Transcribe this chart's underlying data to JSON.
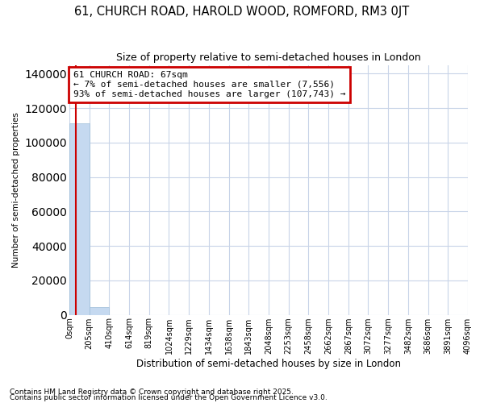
{
  "title": "61, CHURCH ROAD, HAROLD WOOD, ROMFORD, RM3 0JT",
  "subtitle": "Size of property relative to semi-detached houses in London",
  "xlabel": "Distribution of semi-detached houses by size in London",
  "ylabel": "Number of semi-detached properties",
  "property_size": 67,
  "property_label": "61 CHURCH ROAD: 67sqm",
  "smaller_pct": 7,
  "smaller_count": 7556,
  "larger_pct": 93,
  "larger_count": 107743,
  "bar_color": "#c5d9f0",
  "bar_edge_color": "#9dbdd8",
  "line_color": "#cc0000",
  "annotation_box_color": "#cc0000",
  "background_color": "#ffffff",
  "grid_color": "#c8d4e8",
  "xlim": [
    0,
    4096
  ],
  "ylim": [
    0,
    145000
  ],
  "yticks": [
    0,
    20000,
    40000,
    60000,
    80000,
    100000,
    120000,
    140000
  ],
  "xtick_labels": [
    "0sqm",
    "205sqm",
    "410sqm",
    "614sqm",
    "819sqm",
    "1024sqm",
    "1229sqm",
    "1434sqm",
    "1638sqm",
    "1843sqm",
    "2048sqm",
    "2253sqm",
    "2458sqm",
    "2662sqm",
    "2867sqm",
    "3072sqm",
    "3277sqm",
    "3482sqm",
    "3686sqm",
    "3891sqm",
    "4096sqm"
  ],
  "xtick_positions": [
    0,
    205,
    410,
    614,
    819,
    1024,
    1229,
    1434,
    1638,
    1843,
    2048,
    2253,
    2458,
    2662,
    2867,
    3072,
    3277,
    3482,
    3686,
    3891,
    4096
  ],
  "bins": [
    0,
    205,
    410,
    614,
    819,
    1024,
    1229,
    1434,
    1638,
    1843,
    2048,
    2253,
    2458,
    2662,
    2867,
    3072,
    3277,
    3482,
    3686,
    3891,
    4096
  ],
  "bar_heights": [
    111000,
    4500,
    0,
    0,
    0,
    0,
    0,
    0,
    0,
    0,
    0,
    0,
    0,
    0,
    0,
    0,
    0,
    0,
    0,
    0
  ],
  "footnote_line1": "Contains HM Land Registry data © Crown copyright and database right 2025.",
  "footnote_line2": "Contains public sector information licensed under the Open Government Licence v3.0."
}
